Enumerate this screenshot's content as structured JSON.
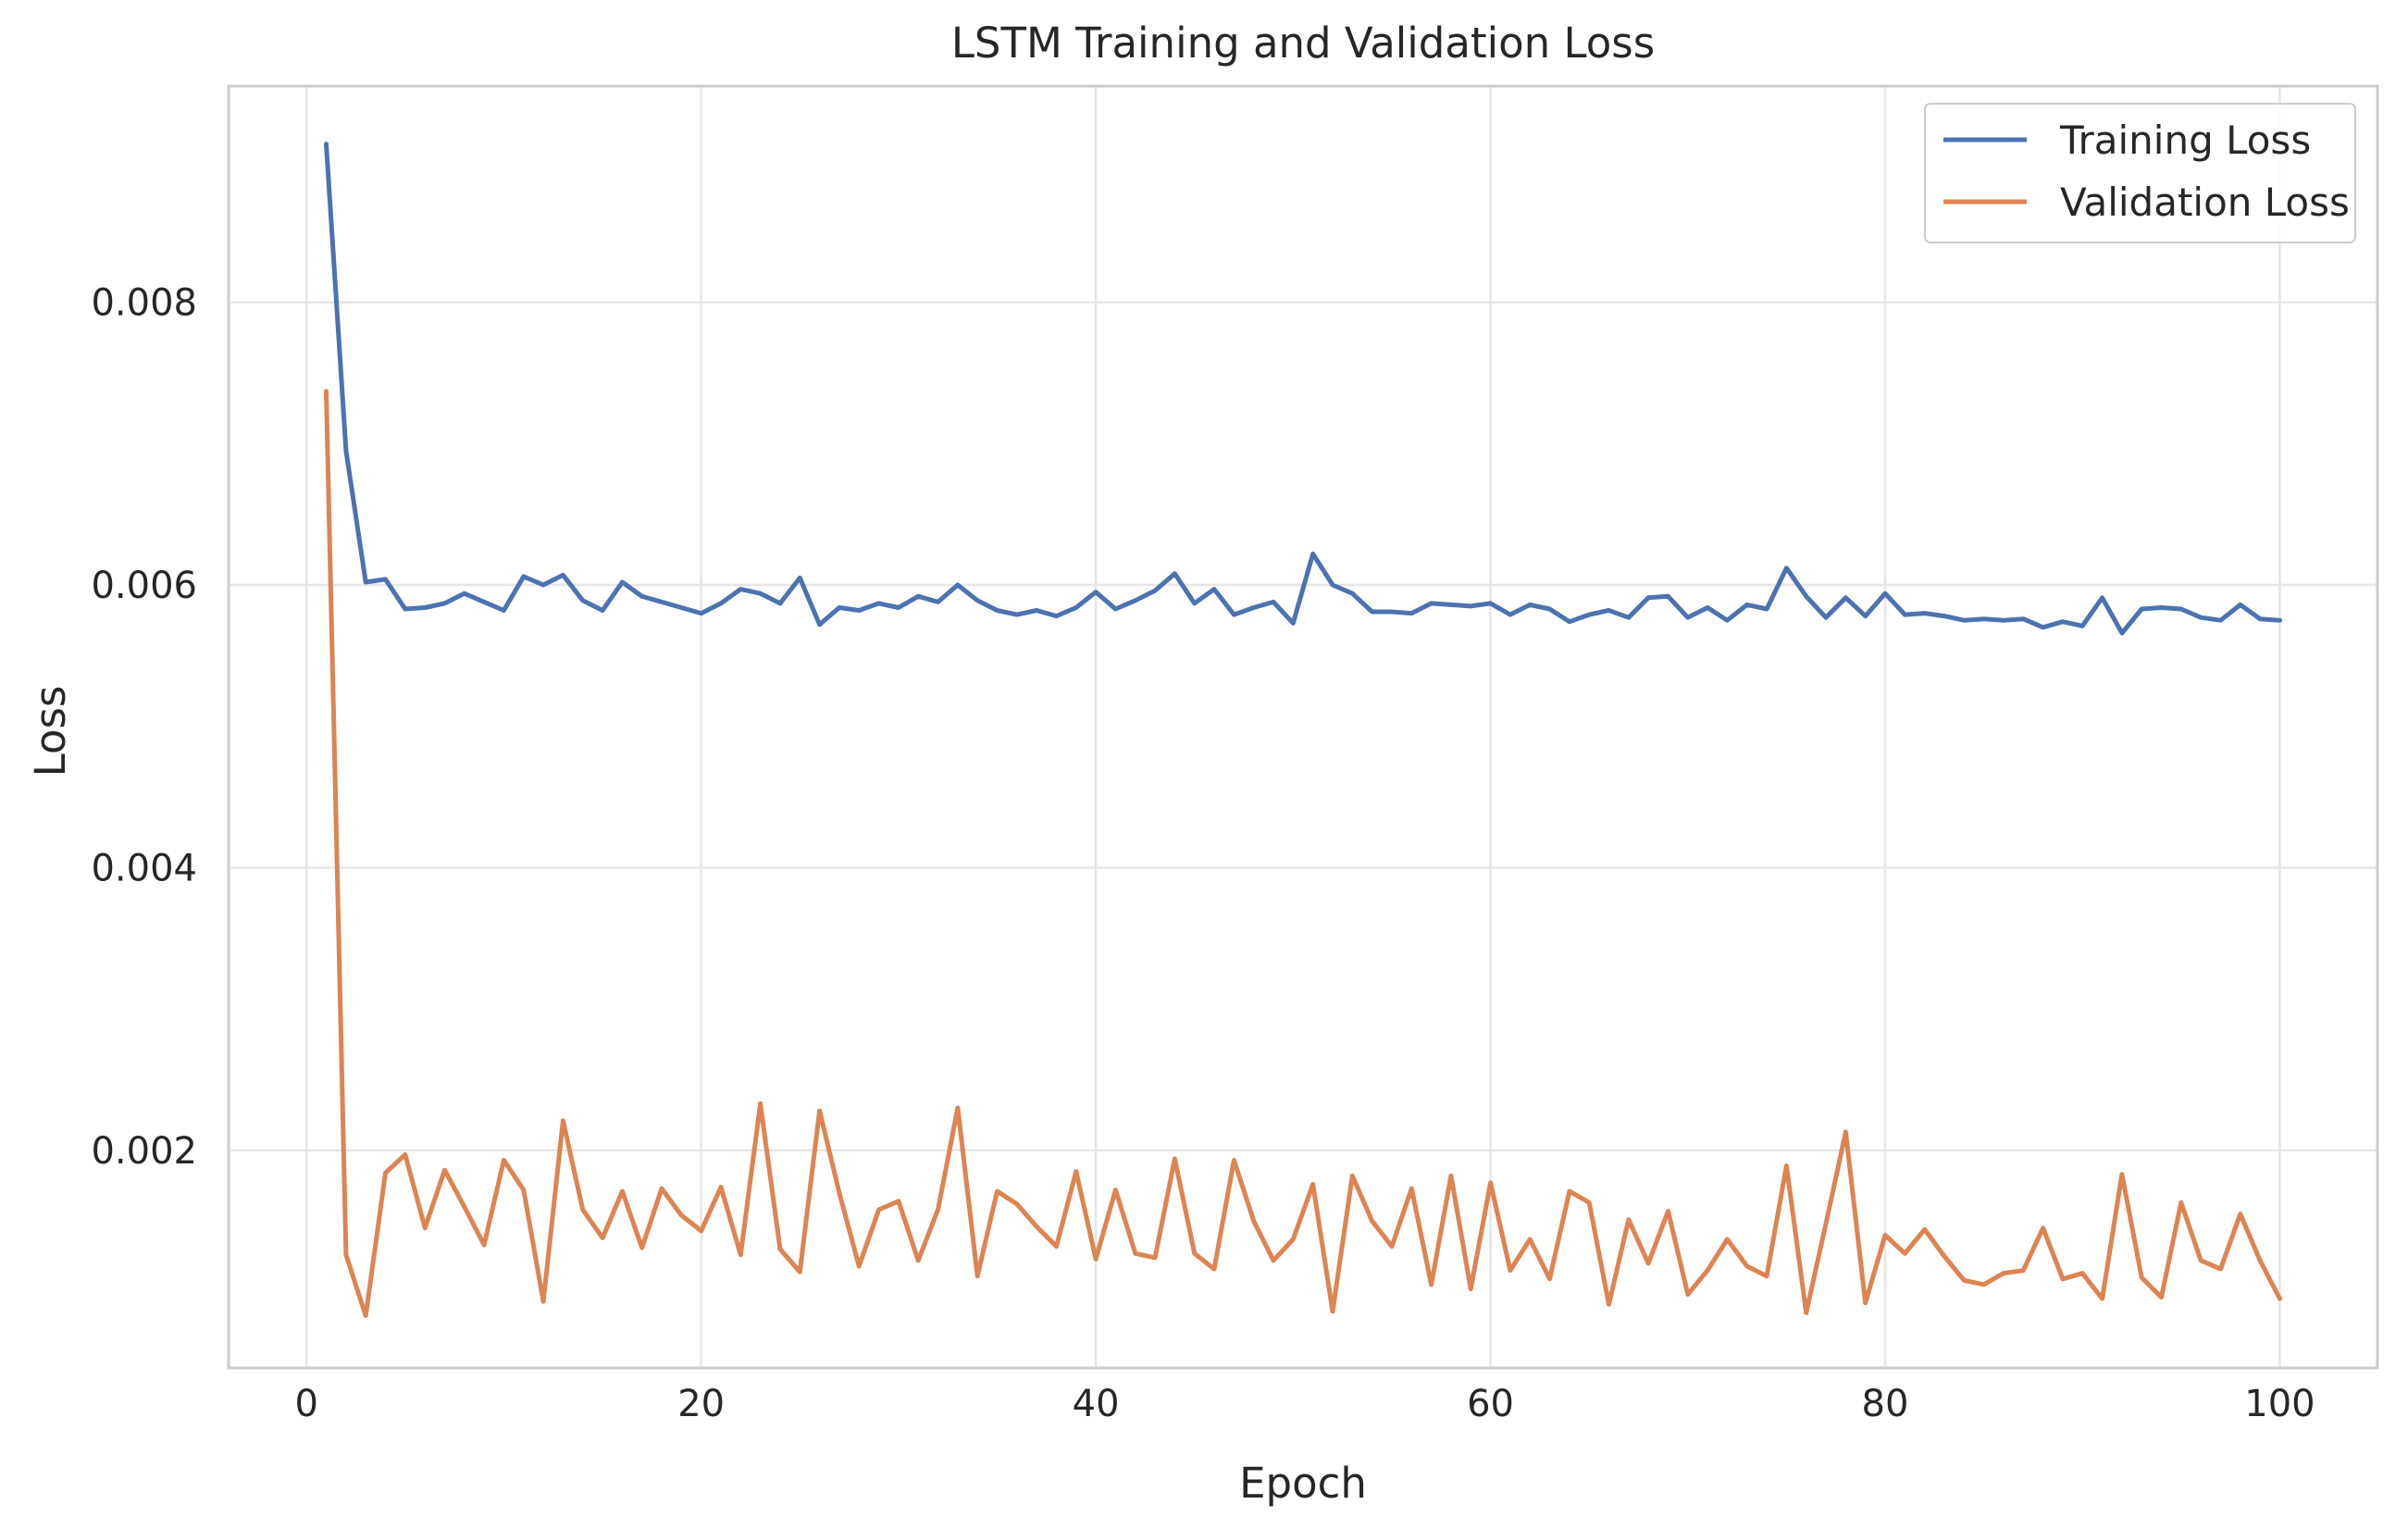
{
  "chart_data": {
    "type": "line",
    "title": "LSTM Training and Validation Loss",
    "xlabel": "Epoch",
    "ylabel": "Loss",
    "xlim": [
      -3.95,
      104.95
    ],
    "ylim": [
      0.00046,
      0.00953
    ],
    "xticks": [
      0,
      20,
      40,
      60,
      80,
      100
    ],
    "xtick_labels": [
      "0",
      "20",
      "40",
      "60",
      "80",
      "100"
    ],
    "yticks": [
      0.002,
      0.004,
      0.006,
      0.008
    ],
    "ytick_labels": [
      "0.002",
      "0.004",
      "0.006",
      "0.008"
    ],
    "grid": true,
    "legend_position": "top-right",
    "x": [
      1,
      2,
      3,
      4,
      5,
      6,
      7,
      8,
      9,
      10,
      11,
      12,
      13,
      14,
      15,
      16,
      17,
      18,
      19,
      20,
      21,
      22,
      23,
      24,
      25,
      26,
      27,
      28,
      29,
      30,
      31,
      32,
      33,
      34,
      35,
      36,
      37,
      38,
      39,
      40,
      41,
      42,
      43,
      44,
      45,
      46,
      47,
      48,
      49,
      50,
      51,
      52,
      53,
      54,
      55,
      56,
      57,
      58,
      59,
      60,
      61,
      62,
      63,
      64,
      65,
      66,
      67,
      68,
      69,
      70,
      71,
      72,
      73,
      74,
      75,
      76,
      77,
      78,
      79,
      80,
      81,
      82,
      83,
      84,
      85,
      86,
      87,
      88,
      89,
      90,
      91,
      92,
      93,
      94,
      95,
      96,
      97,
      98,
      99,
      100
    ],
    "series": [
      {
        "name": "Training Loss",
        "color": "#4c72b0",
        "values": [
          0.00912,
          0.00695,
          0.00602,
          0.00604,
          0.00583,
          0.00584,
          0.00587,
          0.00594,
          0.00588,
          0.00582,
          0.00606,
          0.006,
          0.00607,
          0.00589,
          0.00582,
          0.00602,
          0.00592,
          0.00588,
          0.00584,
          0.0058,
          0.00587,
          0.00597,
          0.00594,
          0.00587,
          0.00605,
          0.00572,
          0.00584,
          0.00582,
          0.00587,
          0.00584,
          0.00592,
          0.00588,
          0.006,
          0.00589,
          0.00582,
          0.00579,
          0.00582,
          0.00578,
          0.00584,
          0.00595,
          0.00583,
          0.00589,
          0.00596,
          0.00608,
          0.00587,
          0.00597,
          0.00579,
          0.00584,
          0.00588,
          0.00573,
          0.00622,
          0.006,
          0.00594,
          0.00581,
          0.00581,
          0.0058,
          0.00587,
          0.00586,
          0.00585,
          0.00587,
          0.00579,
          0.00586,
          0.00583,
          0.00574,
          0.00579,
          0.00582,
          0.00577,
          0.00591,
          0.00592,
          0.00577,
          0.00584,
          0.00575,
          0.00586,
          0.00583,
          0.00612,
          0.00592,
          0.00577,
          0.00591,
          0.00578,
          0.00594,
          0.00579,
          0.0058,
          0.00578,
          0.00575,
          0.00576,
          0.00575,
          0.00576,
          0.0057,
          0.00574,
          0.00571,
          0.00591,
          0.00566,
          0.00583,
          0.00584,
          0.00583,
          0.00577,
          0.00575,
          0.00586,
          0.00576,
          0.00575
        ]
      },
      {
        "name": "Validation Loss",
        "color": "#dd8452",
        "values": [
          0.00737,
          0.00126,
          0.00083,
          0.00184,
          0.00197,
          0.00145,
          0.00186,
          0.0016,
          0.00133,
          0.00193,
          0.00172,
          0.00093,
          0.00221,
          0.00158,
          0.00138,
          0.00171,
          0.00131,
          0.00173,
          0.00154,
          0.00143,
          0.00174,
          0.00126,
          0.00233,
          0.0013,
          0.00114,
          0.00228,
          0.0017,
          0.00118,
          0.00158,
          0.00164,
          0.00122,
          0.00158,
          0.0023,
          0.00111,
          0.00171,
          0.00162,
          0.00146,
          0.00132,
          0.00185,
          0.00123,
          0.00172,
          0.00127,
          0.00124,
          0.00194,
          0.00127,
          0.00116,
          0.00193,
          0.0015,
          0.00122,
          0.00137,
          0.00176,
          0.00086,
          0.00182,
          0.0015,
          0.00132,
          0.00173,
          0.00105,
          0.00182,
          0.00102,
          0.00177,
          0.00115,
          0.00137,
          0.00109,
          0.00171,
          0.00163,
          0.00091,
          0.00151,
          0.0012,
          0.00157,
          0.00098,
          0.00115,
          0.00137,
          0.00118,
          0.00111,
          0.00189,
          0.00085,
          0.00148,
          0.00213,
          0.00092,
          0.0014,
          0.00127,
          0.00144,
          0.00125,
          0.00108,
          0.00105,
          0.00113,
          0.00115,
          0.00145,
          0.00109,
          0.00113,
          0.00095,
          0.00183,
          0.0011,
          0.00096,
          0.00163,
          0.00122,
          0.00116,
          0.00155,
          0.00122,
          0.00095
        ]
      }
    ]
  }
}
